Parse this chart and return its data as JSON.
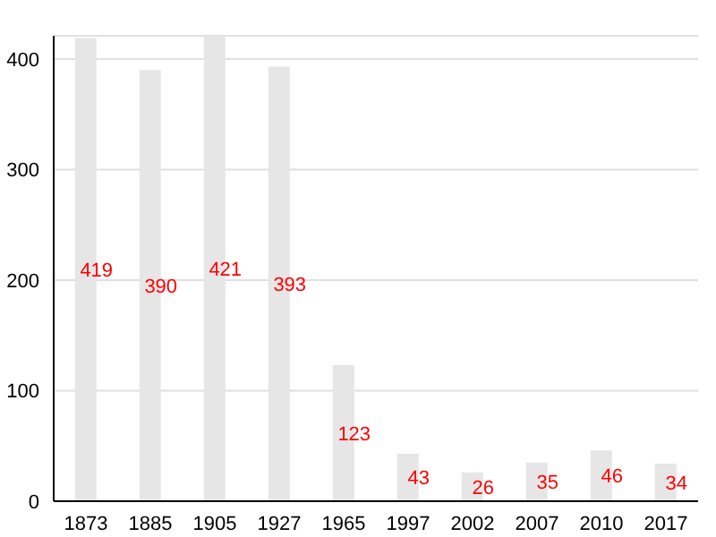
{
  "chart_data": {
    "type": "bar",
    "categories": [
      "1873",
      "1885",
      "1905",
      "1927",
      "1965",
      "1997",
      "2002",
      "2007",
      "2010",
      "2017"
    ],
    "values": [
      419,
      390,
      421,
      393,
      123,
      43,
      26,
      35,
      46,
      34
    ],
    "color": "#e6e6e6",
    "data_labels": true,
    "ylim": [
      0,
      421
    ],
    "yticks": [
      0,
      100,
      200,
      300,
      400
    ],
    "grid": "y"
  }
}
